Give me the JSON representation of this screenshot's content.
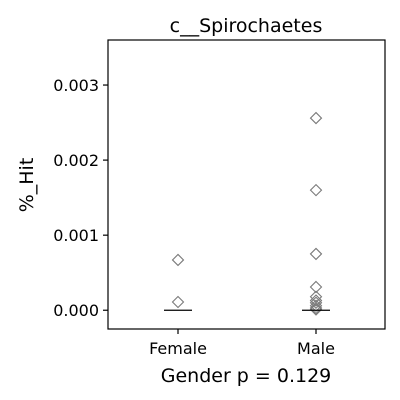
{
  "chart_data": {
    "type": "scatter",
    "title": "c__Spirochaetes",
    "xlabel": "Gender p = 0.129",
    "ylabel": "%_Hit",
    "categories": [
      "Female",
      "Male"
    ],
    "ylim": [
      -0.00025,
      0.0036
    ],
    "yticks": [
      0.0,
      0.001,
      0.002,
      0.003
    ],
    "ytick_labels": [
      "0.000",
      "0.001",
      "0.002",
      "0.003"
    ],
    "grid": false,
    "marker": "diamond-open",
    "marker_color": "#7a7a7a",
    "series": [
      {
        "category": "Female",
        "points": [
          0.00067,
          0.00011
        ],
        "median": 0.0
      },
      {
        "category": "Male",
        "points": [
          0.00256,
          0.0016,
          0.00075,
          0.00031,
          0.00018,
          0.00013,
          0.0001,
          6e-05,
          3e-05,
          1e-05
        ],
        "median": 0.0
      }
    ]
  }
}
